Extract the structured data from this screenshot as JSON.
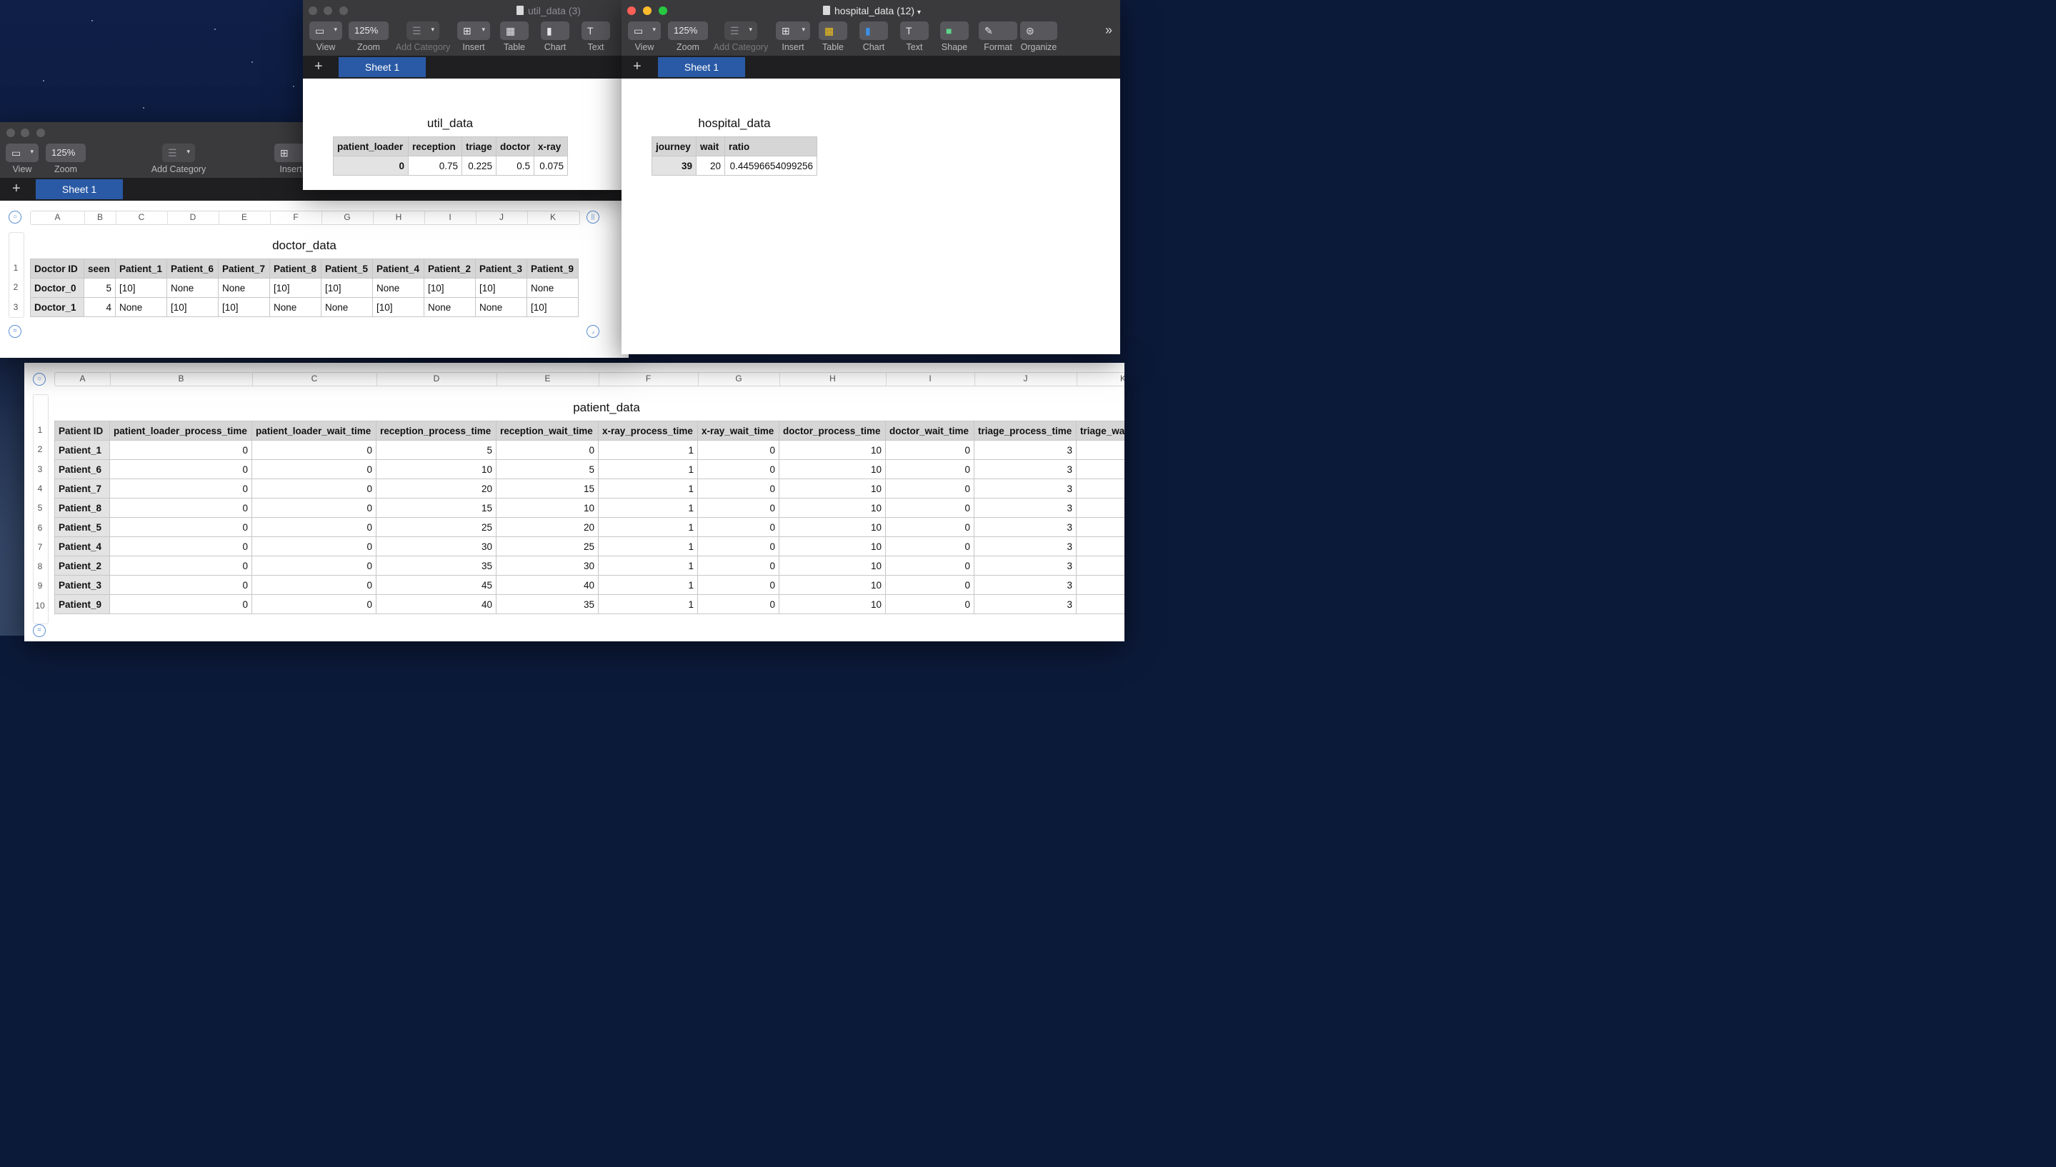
{
  "toolbar_labels": {
    "view": "View",
    "zoom": "Zoom",
    "add_category": "Add Category",
    "insert": "Insert",
    "table": "Table",
    "chart": "Chart",
    "text": "Text",
    "shape": "Shape",
    "format": "Format",
    "organize": "Organize",
    "more": "»"
  },
  "zoom_value": "125%",
  "sheet_tab": "Sheet 1",
  "util_window": {
    "title": "util_data (3)",
    "table_title": "util_data",
    "headers": [
      "patient_loader",
      "reception",
      "triage",
      "doctor",
      "x-ray"
    ],
    "row": [
      "0",
      "0.75",
      "0.225",
      "0.5",
      "0.075"
    ]
  },
  "hospital_window": {
    "title": "hospital_data (12)",
    "table_title": "hospital_data",
    "headers": [
      "journey",
      "wait",
      "ratio"
    ],
    "row": [
      "39",
      "20",
      "0.44596654099256"
    ]
  },
  "doctor_window": {
    "table_title": "doctor_data",
    "columns": [
      "A",
      "B",
      "C",
      "D",
      "E",
      "F",
      "G",
      "H",
      "I",
      "J",
      "K"
    ],
    "row_numbers": [
      "1",
      "2",
      "3"
    ],
    "headers": [
      "Doctor ID",
      "seen",
      "Patient_1",
      "Patient_6",
      "Patient_7",
      "Patient_8",
      "Patient_5",
      "Patient_4",
      "Patient_2",
      "Patient_3",
      "Patient_9"
    ],
    "rows": [
      [
        "Doctor_0",
        "5",
        "[10]",
        "None",
        "None",
        "[10]",
        "[10]",
        "None",
        "[10]",
        "[10]",
        "None"
      ],
      [
        "Doctor_1",
        "4",
        "None",
        "[10]",
        "[10]",
        "None",
        "None",
        "[10]",
        "None",
        "None",
        "[10]"
      ]
    ]
  },
  "patient_window": {
    "table_title": "patient_data",
    "columns": [
      "A",
      "B",
      "C",
      "D",
      "E",
      "F",
      "G",
      "H",
      "I",
      "J",
      "K"
    ],
    "row_numbers": [
      "1",
      "2",
      "3",
      "4",
      "5",
      "6",
      "7",
      "8",
      "9",
      "10"
    ],
    "headers": [
      "Patient ID",
      "patient_loader_process_time",
      "patient_loader_wait_time",
      "reception_process_time",
      "reception_wait_time",
      "x-ray_process_time",
      "x-ray_wait_time",
      "doctor_process_time",
      "doctor_wait_time",
      "triage_process_time",
      "triage_wa"
    ],
    "rows": [
      [
        "Patient_1",
        "0",
        "0",
        "5",
        "0",
        "1",
        "0",
        "10",
        "0",
        "3",
        ""
      ],
      [
        "Patient_6",
        "0",
        "0",
        "10",
        "5",
        "1",
        "0",
        "10",
        "0",
        "3",
        ""
      ],
      [
        "Patient_7",
        "0",
        "0",
        "20",
        "15",
        "1",
        "0",
        "10",
        "0",
        "3",
        ""
      ],
      [
        "Patient_8",
        "0",
        "0",
        "15",
        "10",
        "1",
        "0",
        "10",
        "0",
        "3",
        ""
      ],
      [
        "Patient_5",
        "0",
        "0",
        "25",
        "20",
        "1",
        "0",
        "10",
        "0",
        "3",
        ""
      ],
      [
        "Patient_4",
        "0",
        "0",
        "30",
        "25",
        "1",
        "0",
        "10",
        "0",
        "3",
        ""
      ],
      [
        "Patient_2",
        "0",
        "0",
        "35",
        "30",
        "1",
        "0",
        "10",
        "0",
        "3",
        ""
      ],
      [
        "Patient_3",
        "0",
        "0",
        "45",
        "40",
        "1",
        "0",
        "10",
        "0",
        "3",
        ""
      ],
      [
        "Patient_9",
        "0",
        "0",
        "40",
        "35",
        "1",
        "0",
        "10",
        "0",
        "3",
        ""
      ]
    ]
  }
}
